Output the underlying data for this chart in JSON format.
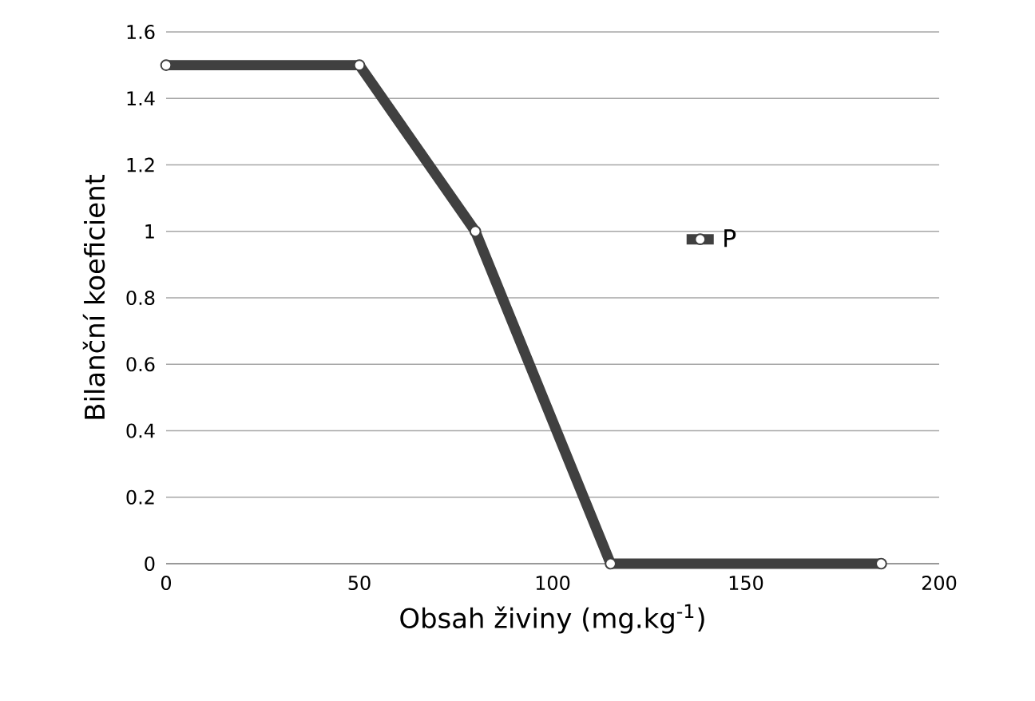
{
  "chart_data": {
    "type": "line",
    "xlabel": "Obsah živiny (mg.kg$^{-1}$)",
    "ylabel": "Bilanční koeficient",
    "x": [
      0,
      50,
      80,
      115,
      185
    ],
    "series": [
      {
        "name": "P",
        "color": "#404040",
        "values": [
          1.5,
          1.5,
          1,
          0,
          0
        ]
      }
    ],
    "xlim": [
      0,
      200
    ],
    "xticks": [
      0,
      50,
      100,
      150,
      200
    ],
    "ylim": [
      0,
      1.6
    ],
    "yticks": [
      0,
      0.2,
      0.4,
      0.6,
      0.8,
      1,
      1.2,
      1.4,
      1.6
    ],
    "grid": "y",
    "legend": "right",
    "marker": "circle",
    "line_style": "solid"
  }
}
